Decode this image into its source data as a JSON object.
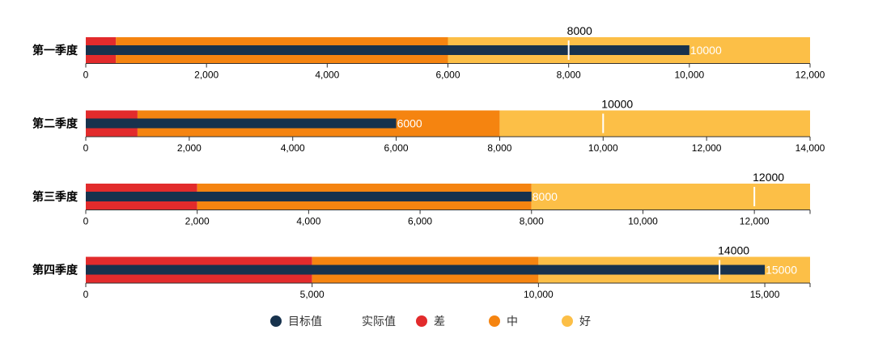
{
  "colors": {
    "bad": "#e22b2c",
    "mid": "#f58410",
    "good": "#fcbf47",
    "actual": "#17324d",
    "target": "#ffffff",
    "axis": "#333333"
  },
  "legend": {
    "items": [
      {
        "label": "目标值",
        "marker": "dot",
        "color": "#17324d"
      },
      {
        "label": "实际值",
        "marker": "none",
        "color": "#17324d"
      },
      {
        "label": "差",
        "marker": "dot",
        "color": "#e22b2c"
      },
      {
        "label": "中",
        "marker": "dot",
        "color": "#f58410"
      },
      {
        "label": "好",
        "marker": "dot",
        "color": "#fcbf47"
      }
    ]
  },
  "chart_data": {
    "type": "bar",
    "subtype": "bullet",
    "categories": [
      "第一季度",
      "第二季度",
      "第三季度",
      "第四季度"
    ],
    "rows": [
      {
        "category": "第一季度",
        "ranges": [
          500,
          6000,
          12000
        ],
        "actual": 10000,
        "target": 8000,
        "axis_max": 12000,
        "ticks": [
          0,
          2000,
          4000,
          6000,
          8000,
          10000,
          12000
        ],
        "tick_labels": [
          "0",
          "2,000",
          "4,000",
          "6,000",
          "8,000",
          "10,000",
          "12,000"
        ],
        "actual_label": "10000",
        "target_label": "8000"
      },
      {
        "category": "第二季度",
        "ranges": [
          1000,
          8000,
          14000
        ],
        "actual": 6000,
        "target": 10000,
        "axis_max": 14000,
        "ticks": [
          0,
          2000,
          4000,
          6000,
          8000,
          10000,
          12000,
          14000
        ],
        "tick_labels": [
          "0",
          "2,000",
          "4,000",
          "6,000",
          "8,000",
          "10,000",
          "12,000",
          "14,000"
        ],
        "actual_label": "6000",
        "target_label": "10000"
      },
      {
        "category": "第三季度",
        "ranges": [
          2000,
          8000,
          13000
        ],
        "actual": 8000,
        "target": 12000,
        "axis_max": 13000,
        "ticks": [
          0,
          2000,
          4000,
          6000,
          8000,
          10000,
          12000
        ],
        "tick_labels": [
          "0",
          "2,000",
          "4,000",
          "6,000",
          "8,000",
          "10,000",
          "12,000"
        ],
        "actual_label": "8000",
        "target_label": "12000"
      },
      {
        "category": "第四季度",
        "ranges": [
          5000,
          10000,
          16000
        ],
        "actual": 15000,
        "target": 14000,
        "axis_max": 16000,
        "ticks": [
          0,
          5000,
          10000,
          15000
        ],
        "tick_labels": [
          "0",
          "5,000",
          "10,000",
          "15,000"
        ],
        "actual_label": "15000",
        "target_label": "14000"
      }
    ]
  }
}
